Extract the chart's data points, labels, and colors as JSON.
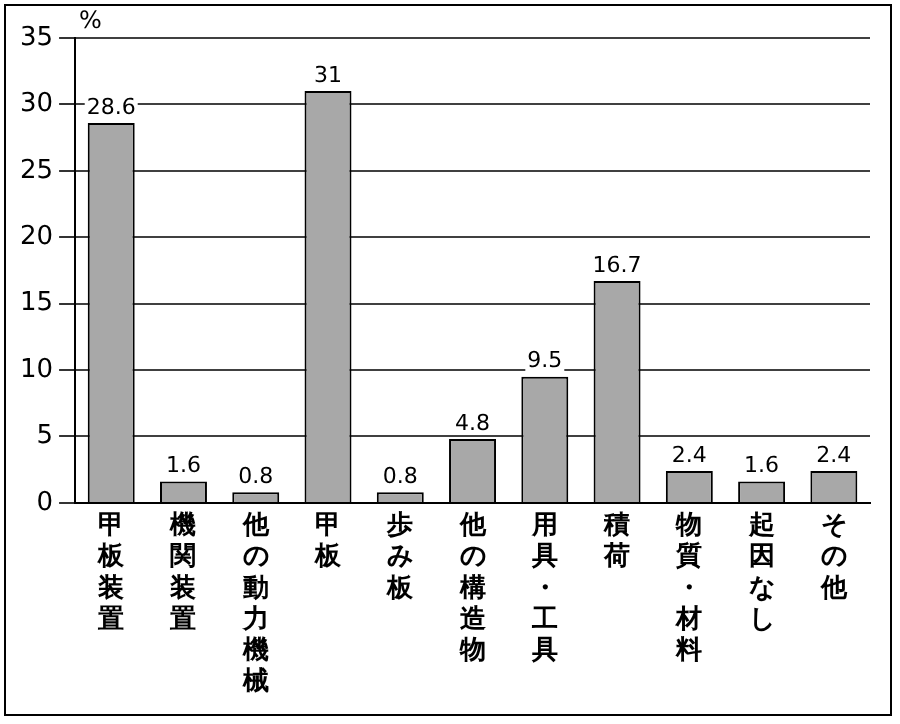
{
  "chart_data": {
    "type": "bar",
    "ylabel": "%",
    "categories": [
      "甲板装置",
      "機関装置",
      "他の動力機械",
      "甲板",
      "歩み板",
      "他の構造物",
      "用具・工具",
      "積荷",
      "物質・材料",
      "起因なし",
      "その他"
    ],
    "values": [
      28.6,
      1.6,
      0.8,
      31,
      0.8,
      4.8,
      9.5,
      16.7,
      2.4,
      1.6,
      2.4
    ],
    "color": "#a8a8a8",
    "ylim": [
      0,
      35
    ],
    "yticks": [
      0,
      5,
      10,
      15,
      20,
      25,
      30,
      35
    ],
    "grid": "y",
    "data_labels": true
  }
}
